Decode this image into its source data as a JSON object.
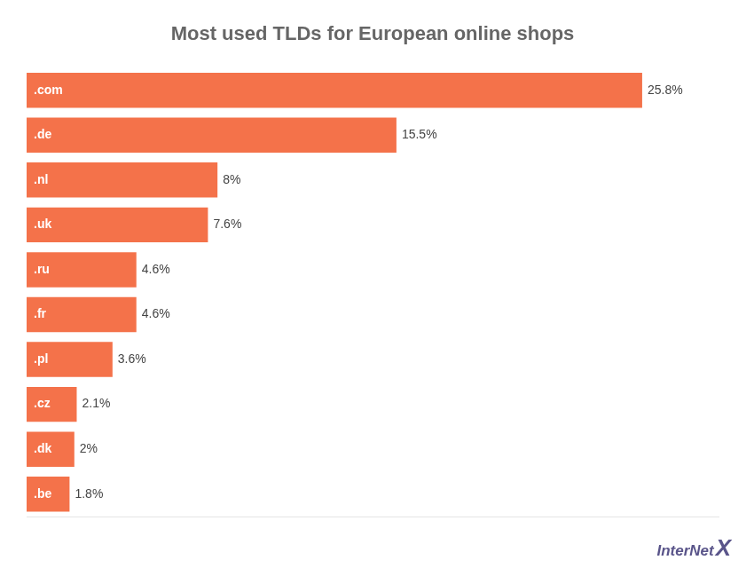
{
  "chart_data": {
    "type": "bar",
    "orientation": "horizontal",
    "title": "Most used TLDs for European online shops",
    "categories": [
      ".com",
      ".de",
      ".nl",
      ".uk",
      ".ru",
      ".fr",
      ".pl",
      ".cz",
      ".dk",
      ".be"
    ],
    "values": [
      25.8,
      15.5,
      8.0,
      7.6,
      4.6,
      4.6,
      3.6,
      2.1,
      2.0,
      1.8
    ],
    "value_labels": [
      "25.8%",
      "15.5%",
      "8%",
      "7.6%",
      "4.6%",
      "4.6%",
      "3.6%",
      "2.1%",
      "2%",
      "1.8%"
    ],
    "data_labels": true,
    "color": "#F4724A",
    "xlim": [
      0,
      29
    ],
    "grid": false,
    "tick_labels": false,
    "annotations": [
      "InterNet",
      "X"
    ]
  }
}
